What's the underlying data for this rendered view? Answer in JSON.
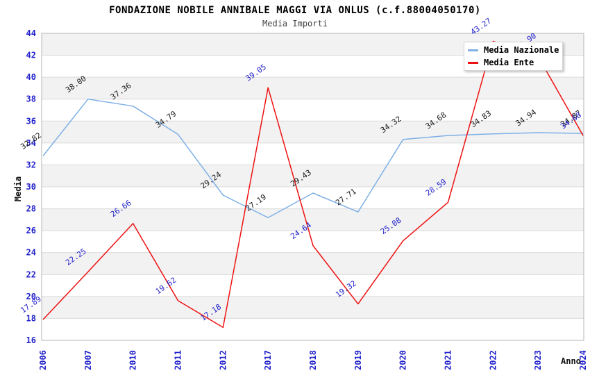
{
  "header": {
    "title": "FONDAZIONE NOBILE ANNIBALE MAGGI VIA ONLUS (c.f.88004050170)",
    "subtitle": "Media Importi"
  },
  "chart_data": {
    "type": "line",
    "x": [
      "2006",
      "2007",
      "2010",
      "2011",
      "2012",
      "2017",
      "2018",
      "2019",
      "2020",
      "2021",
      "2022",
      "2023",
      "2024"
    ],
    "series": [
      {
        "name": "Media Nazionale",
        "color": "#7eb0e6",
        "label_color": "#1a1a1a",
        "values": [
          32.82,
          38.0,
          37.36,
          34.79,
          29.24,
          27.19,
          29.43,
          27.71,
          34.32,
          34.68,
          34.83,
          34.94,
          34.87
        ],
        "point_labels": [
          "32.82",
          "38.00",
          "37.36",
          "34.79",
          "29.24",
          "27.19",
          "29.43",
          "27.71",
          "34.32",
          "34.68",
          "34.83",
          "34.94",
          "34.87"
        ]
      },
      {
        "name": "Media Ente",
        "color": "#ee1111",
        "label_color": "#2222cc",
        "values": [
          17.89,
          22.25,
          26.66,
          19.62,
          17.18,
          39.05,
          24.64,
          19.32,
          25.08,
          28.59,
          43.27,
          41.9,
          34.68
        ],
        "point_labels": [
          "17.89",
          "22.25",
          "26.66",
          "19.62",
          "17.18",
          "39.05",
          "24.64",
          "19.32",
          "25.08",
          "28.59",
          "43.27",
          "41.90",
          "34.68"
        ]
      }
    ],
    "ylabel": "Media",
    "xlabel": "Anno",
    "ylim": [
      16,
      44
    ],
    "ytick_step": 2,
    "yticks": [
      16,
      18,
      20,
      22,
      24,
      26,
      28,
      30,
      32,
      34,
      36,
      38,
      40,
      42,
      44
    ],
    "grid": "horizontal-bands",
    "legend_position": "top-right",
    "axis_tick_color": "#2222cc"
  }
}
